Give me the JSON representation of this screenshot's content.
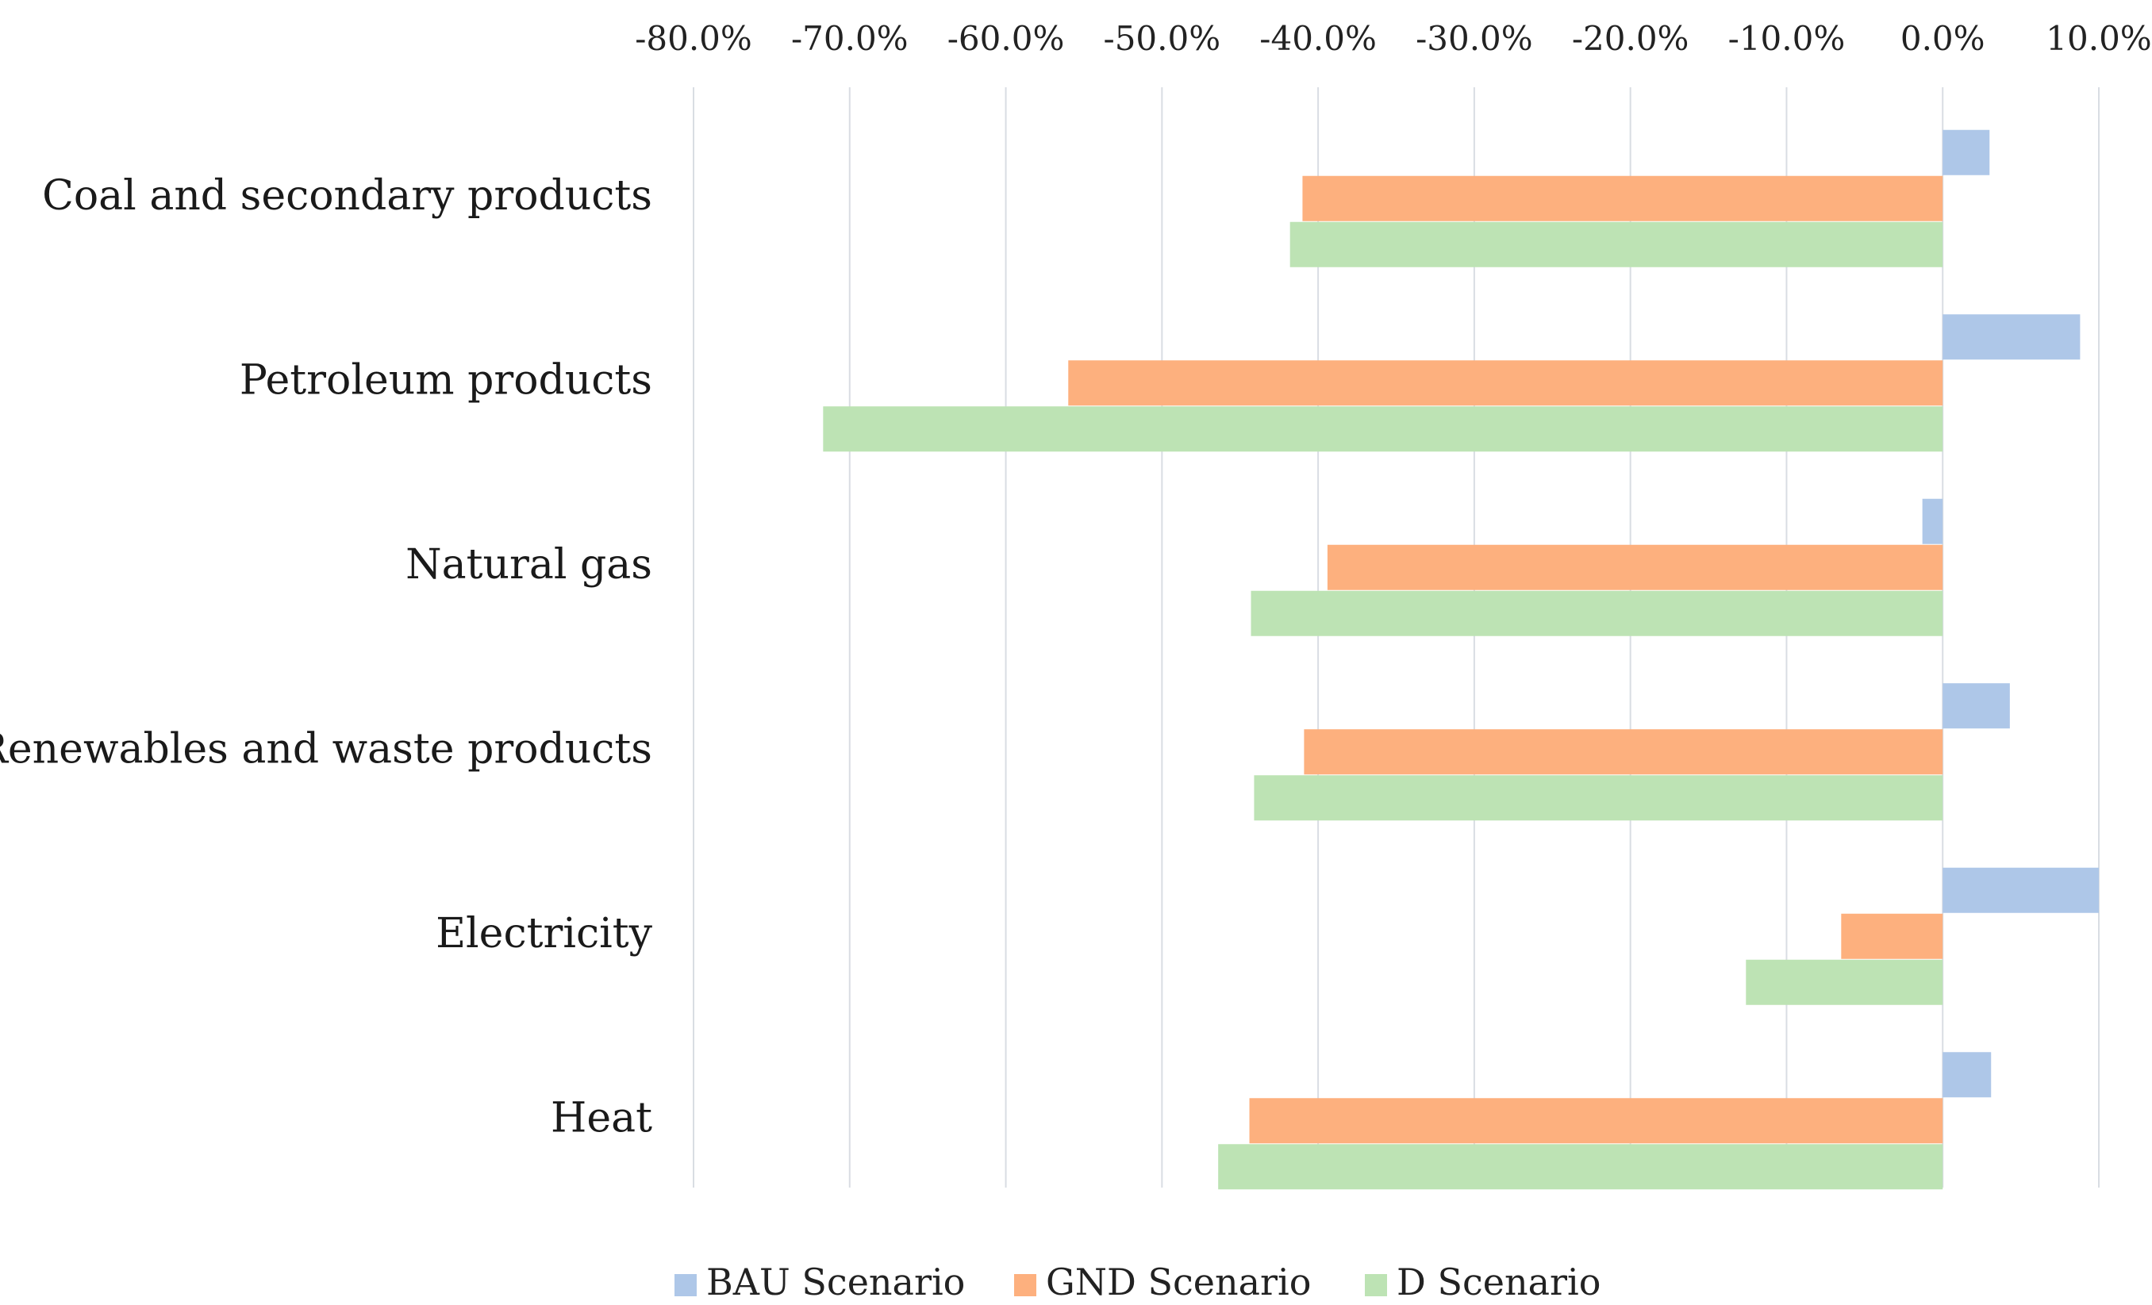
{
  "chart_data": {
    "type": "bar",
    "orientation": "horizontal",
    "title": "",
    "xlabel": "",
    "ylabel": "",
    "xlim": [
      -80,
      10
    ],
    "x_ticks": [
      -80,
      -70,
      -60,
      -50,
      -40,
      -30,
      -20,
      -10,
      0,
      10
    ],
    "x_tick_labels": [
      "-80.0%",
      "-70.0%",
      "-60.0%",
      "-50.0%",
      "-40.0%",
      "-30.0%",
      "-20.0%",
      "-10.0%",
      "0.0%",
      "10.0%"
    ],
    "x_axis_position": "top",
    "grid": true,
    "legend_position": "bottom",
    "categories": [
      "Coal and secondary products",
      "Petroleum products",
      "Natural gas",
      "Renewables and waste products",
      "Electricity",
      "Heat"
    ],
    "series": [
      {
        "name": "BAU Scenario",
        "color": "#aec7e8",
        "values": [
          3.0,
          8.8,
          -1.3,
          4.3,
          10.0,
          3.1
        ]
      },
      {
        "name": "GND Scenario",
        "color": "#fdb07e",
        "values": [
          -41.0,
          -56.0,
          -39.4,
          -40.9,
          -6.5,
          -44.4
        ]
      },
      {
        "name": "D Scenario",
        "color": "#bde3b4",
        "values": [
          -41.8,
          -71.7,
          -44.3,
          -44.1,
          -12.6,
          -46.4
        ]
      }
    ]
  }
}
